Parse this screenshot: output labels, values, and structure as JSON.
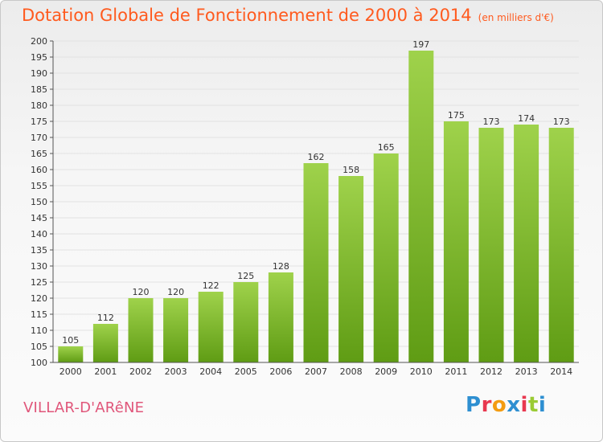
{
  "title": "Dotation Globale de Fonctionnement de 2000 à 2014",
  "unit_note": "(en milliers d'€)",
  "commune": "VILLAR-D'ARêNE",
  "logo": {
    "text": "Proxiti",
    "letter_colors": [
      "#2e8fd1",
      "#e8384f",
      "#f39c12",
      "#2e8fd1",
      "#e8384f",
      "#9acb34",
      "#2e8fd1"
    ]
  },
  "colors": {
    "bar_top": "#9fd24b",
    "bar_bottom": "#5f9c14",
    "title": "#ff5a1e",
    "commune": "#e0567a",
    "grid": "#e2e2e2"
  },
  "chart_data": {
    "type": "bar",
    "categories": [
      "2000",
      "2001",
      "2002",
      "2003",
      "2004",
      "2005",
      "2006",
      "2007",
      "2008",
      "2009",
      "2010",
      "2011",
      "2012",
      "2013",
      "2014"
    ],
    "values": [
      105,
      112,
      120,
      120,
      122,
      125,
      128,
      162,
      158,
      165,
      197,
      175,
      173,
      174,
      173
    ],
    "ylim": [
      100,
      200
    ],
    "ytick_step": 5,
    "grid": true,
    "data_labels": true
  }
}
